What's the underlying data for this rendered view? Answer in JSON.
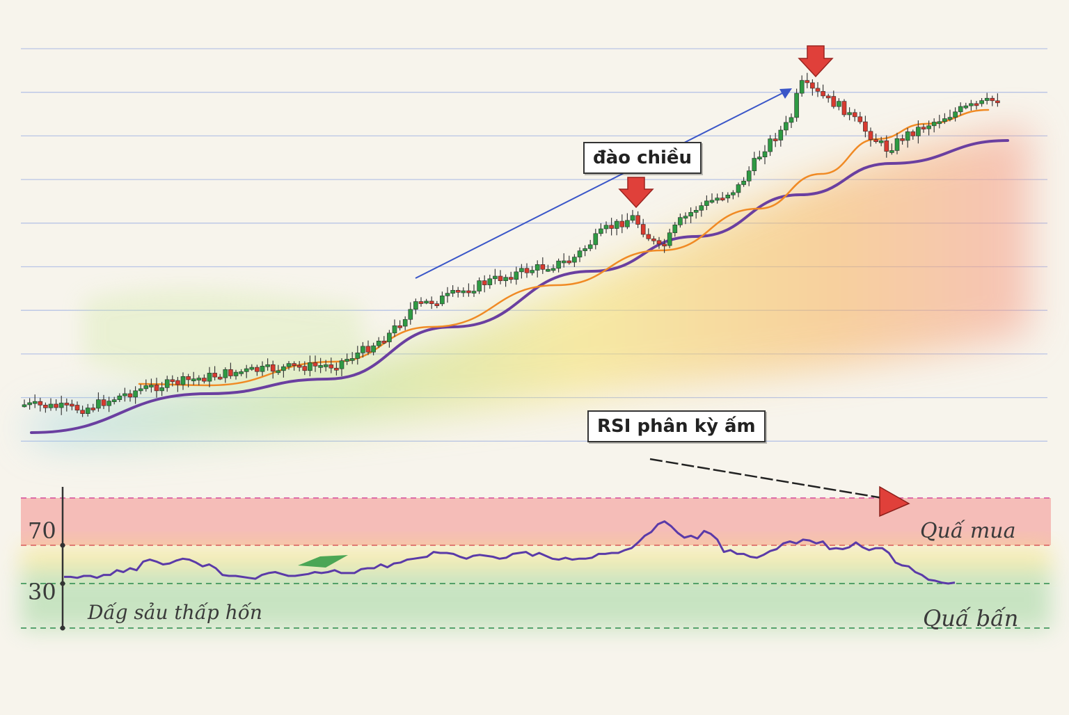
{
  "chart_data": [
    {
      "type": "candlestick",
      "title": "",
      "trend": "up",
      "moving_averages": [
        {
          "name": "",
          "color": "#f08a24"
        },
        {
          "name": "",
          "color": "#6a3fa0"
        }
      ],
      "annotations": {
        "reversal_label": "đào chiều",
        "down_arrow_color": "#e0403a",
        "trend_arrow_color": "#3a56c8"
      },
      "colors": {
        "up": "#2e9a43",
        "down": "#d83a2f"
      }
    },
    {
      "type": "line",
      "title": "",
      "series": [
        {
          "values": [
            37,
            37,
            36,
            38,
            38,
            36,
            39,
            39,
            44,
            42,
            46,
            44,
            53,
            55,
            53,
            50,
            51,
            54,
            56,
            55,
            52,
            48,
            50,
            46,
            39,
            38,
            38,
            37,
            36,
            35,
            39,
            41,
            42,
            40,
            38,
            38,
            39,
            40,
            42,
            41,
            42,
            44,
            41,
            41,
            41,
            45,
            46,
            46,
            50,
            47,
            51,
            52,
            55,
            56,
            57,
            58,
            63,
            62,
            62,
            61,
            58,
            56,
            59,
            60,
            59,
            58,
            56,
            57,
            61,
            62,
            63,
            59,
            62,
            59,
            56,
            55,
            57,
            55,
            56,
            56,
            57,
            61,
            61,
            62,
            62,
            65,
            67,
            73,
            80,
            84,
            92,
            95,
            90,
            83,
            78,
            80,
            77,
            85,
            82,
            76,
            63,
            65,
            61,
            61,
            58,
            57,
            60,
            64,
            66,
            72,
            74,
            72,
            76,
            75,
            72,
            74,
            66,
            67,
            66,
            68,
            73,
            68,
            65,
            67,
            67,
            62,
            52,
            49,
            48,
            42,
            39,
            34,
            33,
            31,
            30,
            31
          ],
          "color": "#5a3aa8"
        }
      ],
      "y_ticks": [
        "70",
        "30"
      ],
      "zones": {
        "overbought_label": "Quấ mua",
        "oversold_label": "Quấ bấn",
        "lower_label": "Dấg sảu thấp hốn"
      },
      "divergence_label": "RSI phân kỳ ấm"
    }
  ]
}
